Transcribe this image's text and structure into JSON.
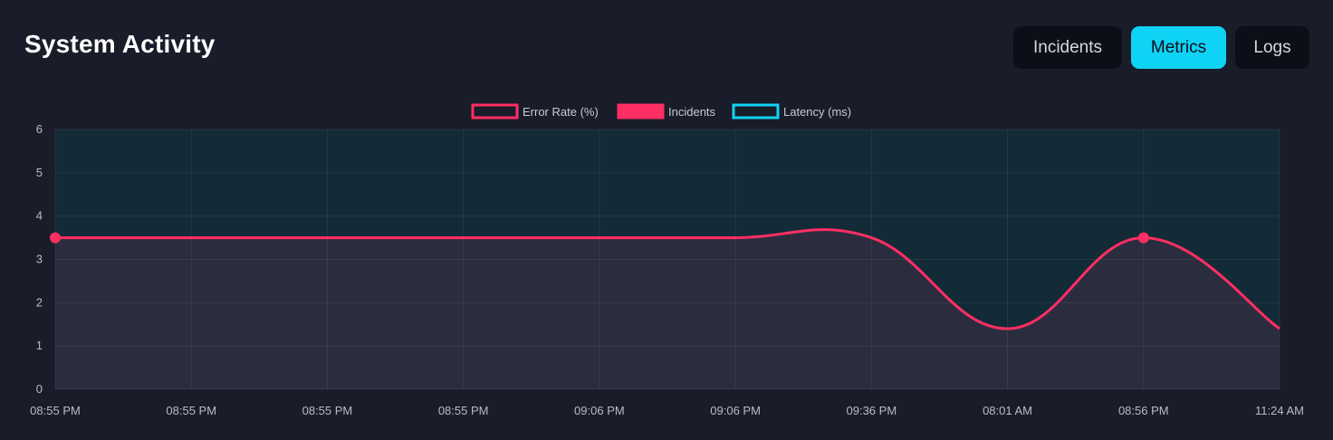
{
  "header": {
    "title": "System Activity",
    "tabs": [
      {
        "label": "Incidents",
        "active": false
      },
      {
        "label": "Metrics",
        "active": true
      },
      {
        "label": "Logs",
        "active": false
      }
    ]
  },
  "colors": {
    "background": "#191c29",
    "accent": "#0fd3f5",
    "error_rate": "#ff2e63",
    "latency": "#0fd3f5",
    "incidents_fill": "#2b2d3f",
    "latency_fill": "#132a37"
  },
  "chart_data": {
    "type": "line",
    "categories": [
      "08:55 PM",
      "08:55 PM",
      "08:55 PM",
      "08:55 PM",
      "09:06 PM",
      "09:06 PM",
      "09:36 PM",
      "08:01 AM",
      "08:56 PM",
      "11:24 AM"
    ],
    "ylim": [
      0,
      6
    ],
    "yticks": [
      "0",
      "1",
      "2",
      "3",
      "4",
      "5",
      "6"
    ],
    "grid": true,
    "legend_position": "top-center",
    "series": [
      {
        "name": "Error Rate (%)",
        "legend_style": "outline",
        "values": [
          3.5,
          3.5,
          3.5,
          3.5,
          3.5,
          3.5,
          3.5,
          1.4,
          3.5,
          1.4
        ],
        "markers": [
          0,
          8
        ]
      },
      {
        "name": "Incidents",
        "legend_style": "filled",
        "values": [
          6,
          6,
          6,
          6,
          6,
          6,
          6,
          6,
          6,
          6
        ]
      },
      {
        "name": "Latency (ms)",
        "legend_style": "outline",
        "values": [
          6,
          6,
          6,
          6,
          6,
          6,
          6,
          6,
          6,
          6
        ]
      }
    ]
  }
}
